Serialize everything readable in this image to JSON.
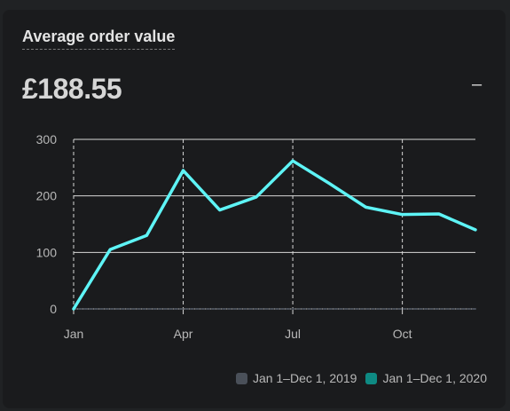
{
  "card": {
    "title": "Average order value",
    "metric_value": "£188.55",
    "trend_symbol": "–"
  },
  "chart_data": {
    "type": "line",
    "title": "",
    "xlabel": "",
    "ylabel": "",
    "x_ticks": [
      "Jan",
      "Apr",
      "Jul",
      "Oct"
    ],
    "y_ticks": [
      0,
      100,
      200,
      300
    ],
    "ylim": [
      0,
      300
    ],
    "series": [
      {
        "name": "Jan 1–Dec 1, 2019",
        "color": "#4a5059",
        "values": [
          0,
          0,
          0,
          0,
          0,
          0,
          0,
          0,
          0,
          0,
          0,
          0
        ]
      },
      {
        "name": "Jan 1–Dec 1, 2020",
        "color": "#5ef4f6",
        "values": [
          0,
          105,
          130,
          245,
          175,
          198,
          262,
          222,
          180,
          167,
          168,
          140
        ]
      }
    ]
  },
  "legend": [
    {
      "label": "Jan 1–Dec 1, 2019",
      "color": "#4a5059"
    },
    {
      "label": "Jan 1–Dec 1, 2020",
      "color": "#0e8a83"
    }
  ]
}
